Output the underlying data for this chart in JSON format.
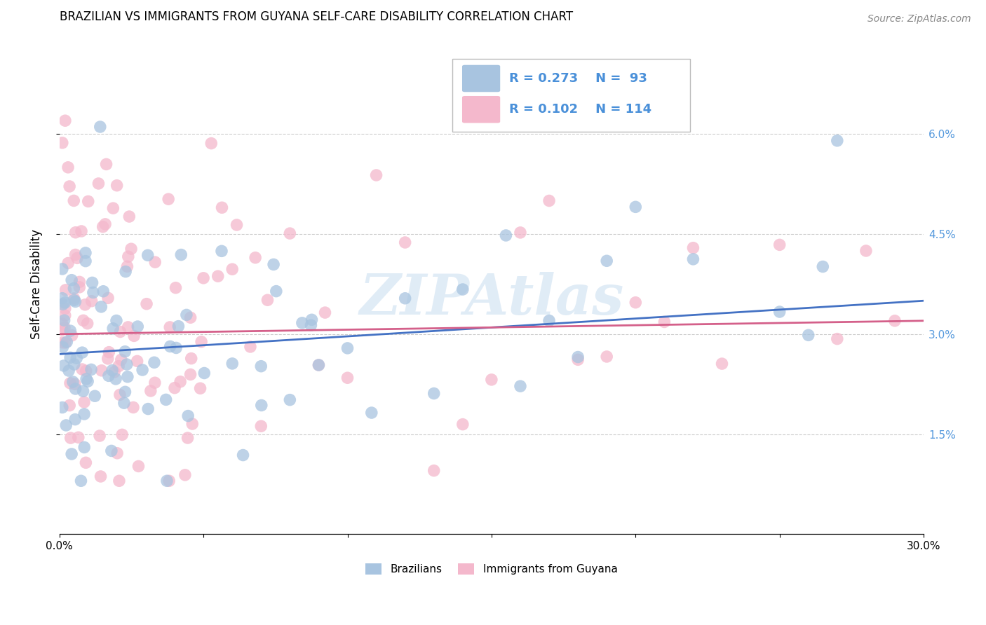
{
  "title": "BRAZILIAN VS IMMIGRANTS FROM GUYANA SELF-CARE DISABILITY CORRELATION CHART",
  "source": "Source: ZipAtlas.com",
  "ylabel": "Self-Care Disability",
  "xlim": [
    0.0,
    0.3
  ],
  "ylim": [
    0.0,
    0.075
  ],
  "xticks": [
    0.0,
    0.05,
    0.1,
    0.15,
    0.2,
    0.25,
    0.3
  ],
  "xtick_labels": [
    "0.0%",
    "",
    "",
    "",
    "",
    "",
    "30.0%"
  ],
  "ytick_positions": [
    0.015,
    0.03,
    0.045,
    0.06
  ],
  "ytick_labels": [
    "1.5%",
    "3.0%",
    "4.5%",
    "6.0%"
  ],
  "legend1_R": "0.273",
  "legend1_N": "93",
  "legend2_R": "0.102",
  "legend2_N": "114",
  "blue_color": "#a8c4e0",
  "pink_color": "#f4b8cc",
  "blue_line_color": "#4472c4",
  "pink_line_color": "#d4608a",
  "watermark": "ZIPAtlas",
  "blue_trend": [
    0.0,
    0.3,
    0.027,
    0.035
  ],
  "pink_trend": [
    0.0,
    0.3,
    0.03,
    0.032
  ]
}
